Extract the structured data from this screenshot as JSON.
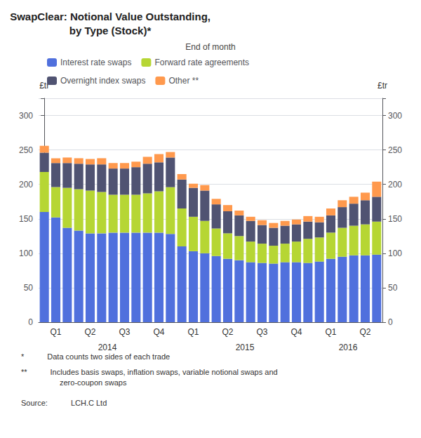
{
  "chart_data": {
    "type": "bar",
    "title": "SwapClear: Notional Value Outstanding,\nby Type (Stock)*",
    "subtitle": "End of month",
    "ylabel": "£tr",
    "y2label": "£tr",
    "stacked": true,
    "grid": true,
    "legend": "upper left",
    "categories": [
      null,
      "Q1",
      null,
      null,
      "Q2",
      null,
      null,
      "Q3",
      null,
      null,
      "Q4",
      null,
      null,
      "Q1",
      null,
      null,
      "Q2",
      null,
      null,
      "Q3",
      null,
      null,
      "Q4",
      null,
      null,
      "Q1",
      null,
      null,
      "Q2",
      null
    ],
    "x_groups": [
      "2014",
      "2014",
      "2014",
      "2014",
      "2014",
      "2014",
      "2014",
      "2014",
      "2014",
      "2014",
      "2014",
      "2014",
      "2015",
      "2015",
      "2015",
      "2015",
      "2015",
      "2015",
      "2015",
      "2015",
      "2015",
      "2015",
      "2015",
      "2015",
      "2016",
      "2016",
      "2016",
      "2016",
      "2016",
      "2016"
    ],
    "series": [
      {
        "name": "Interest rate swaps",
        "values": [
          160,
          152,
          137,
          133,
          129,
          129,
          130,
          130,
          130,
          130,
          130,
          128,
          110,
          103,
          100,
          96,
          92,
          90,
          87,
          86,
          85,
          87,
          87,
          86,
          88,
          92,
          95,
          97,
          97,
          98
        ]
      },
      {
        "name": "Forward rate agreements",
        "values": [
          58,
          44,
          58,
          60,
          62,
          60,
          55,
          55,
          55,
          57,
          60,
          68,
          55,
          50,
          47,
          40,
          37,
          35,
          30,
          28,
          26,
          27,
          30,
          35,
          35,
          38,
          42,
          43,
          45,
          48
        ]
      },
      {
        "name": "Overnight index swaps",
        "values": [
          28,
          35,
          36,
          37,
          38,
          40,
          38,
          38,
          40,
          43,
          42,
          43,
          42,
          42,
          44,
          35,
          32,
          30,
          30,
          27,
          26,
          26,
          25,
          25,
          22,
          25,
          30,
          32,
          35,
          36
        ]
      },
      {
        "name": "Other **",
        "values": [
          10,
          7,
          8,
          8,
          8,
          9,
          8,
          8,
          8,
          10,
          12,
          8,
          8,
          6,
          8,
          8,
          9,
          7,
          6,
          7,
          7,
          7,
          7,
          8,
          8,
          10,
          10,
          10,
          11,
          22
        ]
      }
    ],
    "ylim": [
      0,
      325
    ],
    "yticks": [
      0,
      50,
      100,
      150,
      200,
      250,
      300
    ],
    "y2lim": [
      0,
      325
    ],
    "y2ticks": [
      0,
      50,
      100,
      150,
      200,
      250,
      300
    ],
    "annotations": [
      "*   Data counts two sides of each trade",
      "**   Includes basis swaps, inflation swaps, variable notional swaps and\n     zero-coupon swaps",
      "Source:   LCH.C Ltd"
    ]
  }
}
